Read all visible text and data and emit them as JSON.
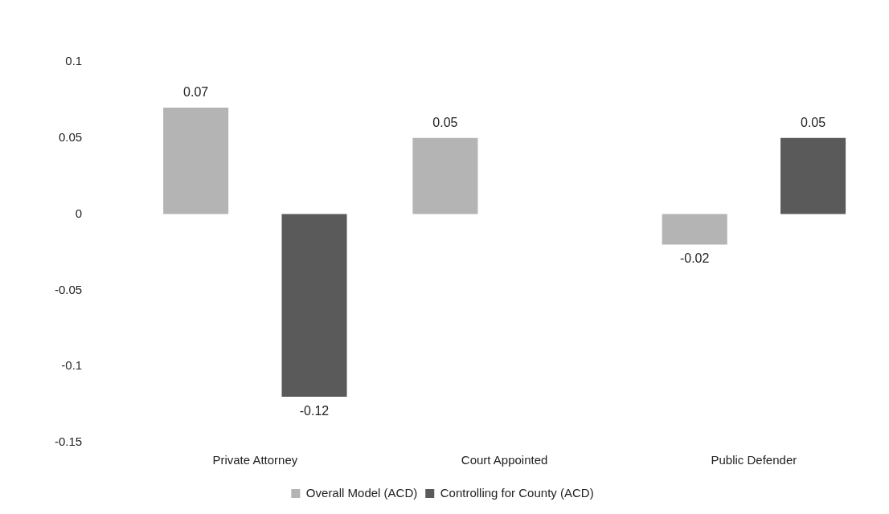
{
  "chart_data": {
    "type": "bar",
    "categories": [
      "Private Attorney",
      "Court Appointed",
      "Public Defender"
    ],
    "series": [
      {
        "name": "Overall Model (ACD)",
        "color": "#b4b4b4",
        "values": [
          0.07,
          0.05,
          -0.02
        ]
      },
      {
        "name": "Controlling for County (ACD)",
        "color": "#5a5a5a",
        "values": [
          -0.12,
          null,
          0.05
        ]
      }
    ],
    "ylim": [
      -0.15,
      0.1
    ],
    "yticks": [
      -0.15,
      -0.1,
      -0.05,
      0,
      0.05,
      0.1
    ],
    "data_labels": true,
    "grid": false,
    "legend": "bottom"
  }
}
